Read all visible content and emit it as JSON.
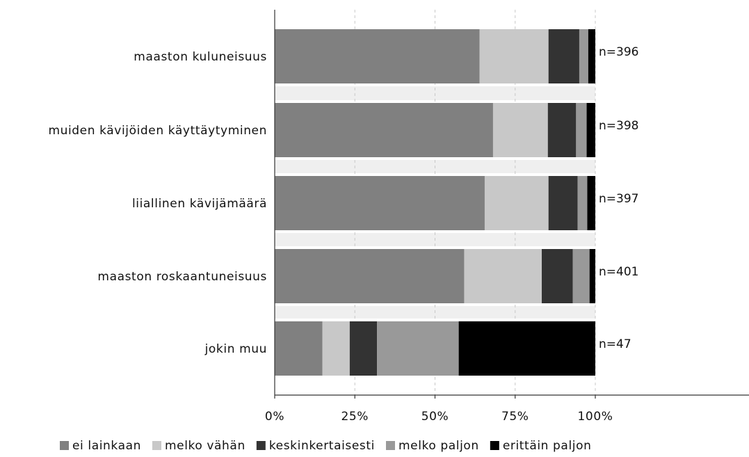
{
  "chart_data": {
    "type": "bar",
    "orientation": "horizontal",
    "stacked": true,
    "normalized": true,
    "title": "",
    "xlabel": "",
    "ylabel": "",
    "xlim": [
      0,
      100
    ],
    "x_unit": "%",
    "ticks": [
      "0%",
      "25%",
      "50%",
      "75%",
      "100%"
    ],
    "categories": [
      "maaston kuluneisuus",
      "muiden kävijöiden käyttäytyminen",
      "liiallinen kävijämäärä",
      "maaston roskaantuneisuus",
      "jokin muu"
    ],
    "n_labels": [
      "n=396",
      "n=398",
      "n=397",
      "n=401",
      "n=47"
    ],
    "series": [
      {
        "name": "ei lainkaan",
        "color": "#808080",
        "values": [
          63.9,
          68.1,
          65.5,
          59.1,
          14.9
        ]
      },
      {
        "name": "melko vähän",
        "color": "#c8c8c8",
        "values": [
          21.5,
          17.1,
          19.9,
          24.2,
          8.5
        ]
      },
      {
        "name": "keskinkertaisesti",
        "color": "#333333",
        "values": [
          9.6,
          8.8,
          9.1,
          9.7,
          8.5
        ]
      },
      {
        "name": "melko paljon",
        "color": "#999999",
        "values": [
          2.8,
          3.3,
          3.0,
          5.2,
          25.5
        ]
      },
      {
        "name": "erittäin paljon",
        "color": "#000000",
        "values": [
          2.2,
          2.7,
          2.5,
          1.8,
          42.6
        ]
      }
    ],
    "grid": true,
    "legend_position": "bottom"
  }
}
